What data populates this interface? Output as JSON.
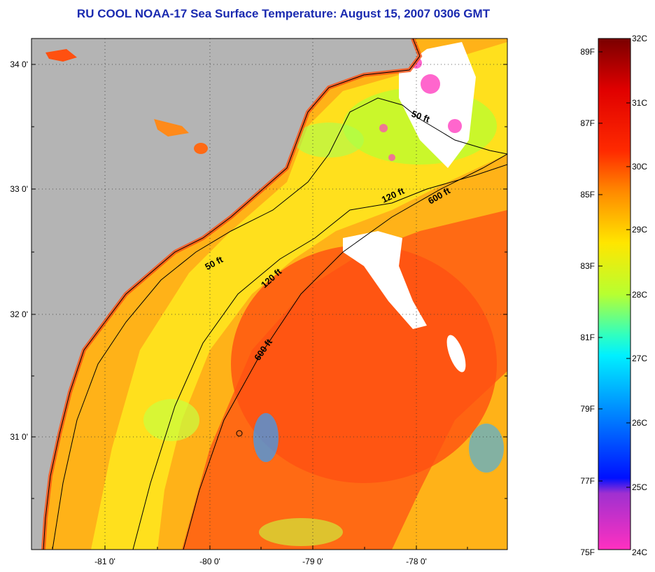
{
  "title": "RU COOL  NOAA-17  Sea Surface Temperature:  August 15, 2007 0306 GMT",
  "map": {
    "lat_labels": [
      "34 0'",
      "33 0'",
      "32 0'",
      "31 0'"
    ],
    "lon_labels": [
      "-81 0'",
      "-80 0'",
      "-79 0'",
      "-78 0'"
    ],
    "contour_labels": {
      "c50_north": "50 ft",
      "c120_north": "120 ft",
      "c600_north": "600 ft",
      "c50_south": "50 ft",
      "c120_south": "120 ft",
      "c600_south": "600 ft"
    },
    "colors": {
      "land": "#b4b4b4",
      "coastline": "#000000",
      "warm_core": "#ff5a10",
      "shelf_yellow": "#ffe81e",
      "cloud": "#ffffff"
    }
  },
  "colorbar": {
    "celsius_labels": [
      "32C",
      "31C",
      "30C",
      "29C",
      "28C",
      "27C",
      "26C",
      "25C",
      "24C"
    ],
    "fahrenheit_labels": [
      "89F",
      "87F",
      "85F",
      "83F",
      "81F",
      "79F",
      "77F",
      "75F"
    ],
    "colors_top_to_bottom": [
      "#7a0000",
      "#e00000",
      "#ff2a00",
      "#ff8a00",
      "#ffe600",
      "#b8ff30",
      "#30ffc0",
      "#00f0ff",
      "#0080ff",
      "#0010ff",
      "#a030d0",
      "#ff30c0"
    ]
  }
}
